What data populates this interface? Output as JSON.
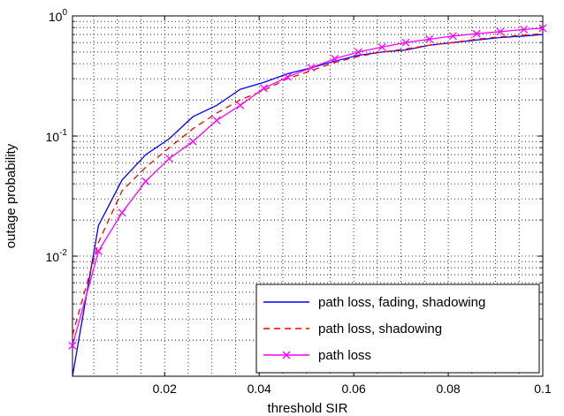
{
  "chart_data": {
    "type": "line",
    "xlabel": "threshold SIR",
    "ylabel": "outage probability",
    "xscale": "linear",
    "yscale": "log",
    "xlim": [
      0.0005,
      0.1
    ],
    "ylim": [
      0.001,
      1
    ],
    "grid": true,
    "legend_position": "bottom-right",
    "x_ticks": [
      {
        "value": 0.02,
        "label": "0.02"
      },
      {
        "value": 0.04,
        "label": "0.04"
      },
      {
        "value": 0.06,
        "label": "0.06"
      },
      {
        "value": 0.08,
        "label": "0.08"
      },
      {
        "value": 0.1,
        "label": "0.1"
      }
    ],
    "y_ticks": [
      {
        "value": 0.01,
        "base": "10",
        "exp": "-2"
      },
      {
        "value": 0.1,
        "base": "10",
        "exp": "-1"
      },
      {
        "value": 1,
        "base": "10",
        "exp": "0"
      }
    ],
    "series": [
      {
        "name": "path loss, fading, shadowing",
        "color": "#0000ff",
        "style": "solid",
        "marker": "none",
        "x": [
          0.0005,
          0.006,
          0.011,
          0.016,
          0.021,
          0.026,
          0.031,
          0.036,
          0.041,
          0.046,
          0.051,
          0.056,
          0.061,
          0.066,
          0.071,
          0.076,
          0.081,
          0.086,
          0.091,
          0.096,
          0.1
        ],
        "y": [
          0.001,
          0.018,
          0.043,
          0.07,
          0.095,
          0.145,
          0.18,
          0.245,
          0.28,
          0.33,
          0.37,
          0.42,
          0.47,
          0.5,
          0.52,
          0.57,
          0.6,
          0.63,
          0.66,
          0.68,
          0.7
        ]
      },
      {
        "name": "path loss, shadowing",
        "color": "#ff0000",
        "style": "dashed",
        "marker": "none",
        "x": [
          0.0005,
          0.006,
          0.011,
          0.016,
          0.021,
          0.026,
          0.031,
          0.036,
          0.041,
          0.046,
          0.051,
          0.056,
          0.061,
          0.066,
          0.071,
          0.076,
          0.081,
          0.086,
          0.091,
          0.096,
          0.1
        ],
        "y": [
          0.0022,
          0.013,
          0.035,
          0.055,
          0.08,
          0.115,
          0.155,
          0.2,
          0.24,
          0.3,
          0.35,
          0.41,
          0.46,
          0.5,
          0.53,
          0.57,
          0.6,
          0.64,
          0.67,
          0.69,
          0.71
        ]
      },
      {
        "name": "path loss",
        "color": "#ff00ff",
        "style": "solid",
        "marker": "x",
        "x": [
          0.0005,
          0.006,
          0.011,
          0.016,
          0.021,
          0.026,
          0.031,
          0.036,
          0.041,
          0.046,
          0.051,
          0.056,
          0.061,
          0.066,
          0.071,
          0.076,
          0.081,
          0.086,
          0.091,
          0.096,
          0.1
        ],
        "y": [
          0.0018,
          0.011,
          0.023,
          0.042,
          0.065,
          0.09,
          0.135,
          0.18,
          0.25,
          0.31,
          0.37,
          0.44,
          0.5,
          0.55,
          0.6,
          0.64,
          0.68,
          0.71,
          0.74,
          0.77,
          0.79
        ]
      }
    ]
  }
}
